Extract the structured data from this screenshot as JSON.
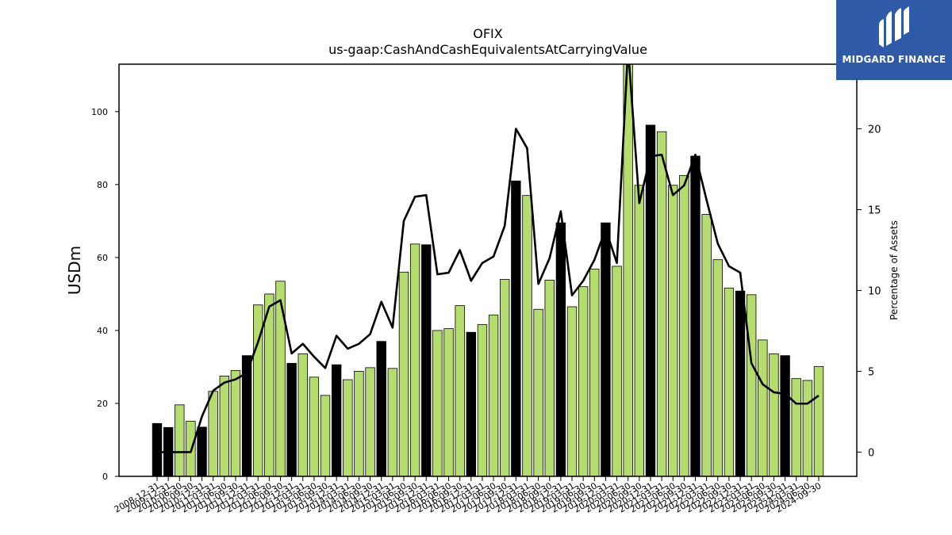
{
  "chart_data": {
    "type": "bar",
    "title": "OFIX",
    "subtitle": "us-gaap:CashAndCashEquivalentsAtCarryingValue",
    "ylabel": "USDm",
    "y2label": "Percentage of Assets",
    "ylim": [
      0,
      113
    ],
    "y2lim": [
      -1.5,
      24
    ],
    "yticks": [
      0,
      20,
      40,
      60,
      80,
      100
    ],
    "y2ticks": [
      0,
      5,
      10,
      15,
      20
    ],
    "colors": {
      "bar_default": "#b5dc6e",
      "bar_highlight": "#000000",
      "line": "#000000"
    },
    "categories": [
      "2008-12-31",
      "2009-12-31",
      "2010-06-30",
      "2010-09-30",
      "2010-12-31",
      "2011-03-31",
      "2011-06-30",
      "2011-09-30",
      "2011-12-31",
      "2012-03-31",
      "2012-06-30",
      "2012-09-30",
      "2012-12-31",
      "2013-03-31",
      "2013-06-30",
      "2013-09-30",
      "2013-12-31",
      "2014-03-31",
      "2014-06-30",
      "2014-09-30",
      "2014-12-31",
      "2015-03-31",
      "2015-06-30",
      "2015-09-30",
      "2015-12-31",
      "2016-03-31",
      "2016-06-30",
      "2016-09-30",
      "2016-12-31",
      "2017-03-31",
      "2017-06-30",
      "2017-09-30",
      "2017-12-31",
      "2018-03-31",
      "2018-06-30",
      "2018-09-30",
      "2018-12-31",
      "2019-03-31",
      "2019-06-30",
      "2019-09-30",
      "2019-12-31",
      "2020-03-31",
      "2020-06-30",
      "2020-09-30",
      "2020-12-31",
      "2021-03-31",
      "2021-06-30",
      "2021-09-30",
      "2021-12-31",
      "2022-03-31",
      "2022-06-30",
      "2022-09-30",
      "2022-12-31",
      "2023-03-31",
      "2023-06-30",
      "2023-09-30",
      "2023-12-31",
      "2024-03-31",
      "2024-06-30",
      "2024-09-30"
    ],
    "tick_labels": [
      "2008-12-31",
      "2009-12-31",
      "2010-06-30",
      "2010-09-30",
      "2010-12-31",
      "2011-03-31",
      "2011-06-30",
      "2011-09-30",
      "2011-12-31",
      "2012-03-31",
      "2012-06-30",
      "2012-09-30",
      "2012-12-31",
      "2013-03-31",
      "2013-06-30",
      "2013-09-30",
      "2013-12-31",
      "2014-03-31",
      "2014-06-30",
      "2014-09-30",
      "2014-12-31",
      "2015-03-31",
      "2015-06-30",
      "2015-09-30",
      "2015-12-31",
      "2016-03-31",
      "2016-06-30",
      "2016-09-30",
      "2016-12-31",
      "2017-03-31",
      "2017-06-30",
      "2017-09-30",
      "2017-12-31",
      "2018-03-31",
      "2018-06-30",
      "2018-09-30",
      "2018-12-31",
      "2019-03-31",
      "2019-06-30",
      "2019-09-30",
      "2019-12-31",
      "2020-03-31",
      "2020-06-30",
      "2020-09-30",
      "2020-12-31",
      "2021-03-31",
      "2021-06-30",
      "2021-09-30",
      "2021-12-31",
      "2022-03-31",
      "2022-06-30",
      "2022-09-30",
      "2022-12-31",
      "2023-03-31",
      "2023-06-30",
      "2023-09-30",
      "2023-12-31",
      "2024-03-31",
      "2024-06-30",
      "2024-09-30"
    ],
    "values": [
      14.5,
      13.4,
      19.6,
      15.1,
      13.5,
      23.3,
      27.5,
      29.0,
      33.1,
      47.0,
      50.0,
      53.5,
      31.0,
      33.6,
      27.2,
      22.2,
      30.6,
      26.5,
      28.8,
      29.8,
      37.0,
      29.6,
      56.0,
      63.7,
      63.5,
      40.0,
      40.5,
      46.8,
      39.5,
      41.6,
      44.2,
      54.0,
      81.0,
      77.0,
      45.8,
      53.8,
      69.5,
      46.5,
      52.0,
      56.8,
      69.5,
      57.6,
      113.0,
      79.8,
      96.3,
      94.5,
      79.8,
      82.5,
      87.8,
      71.8,
      59.4,
      51.6,
      50.8,
      49.8,
      37.4,
      33.6,
      33.1,
      26.8,
      26.3,
      30.1
    ],
    "highlight": [
      true,
      true,
      false,
      false,
      true,
      false,
      false,
      false,
      true,
      false,
      false,
      false,
      true,
      false,
      false,
      false,
      true,
      false,
      false,
      false,
      true,
      false,
      false,
      false,
      true,
      false,
      false,
      false,
      true,
      false,
      false,
      false,
      true,
      false,
      false,
      false,
      true,
      false,
      false,
      false,
      true,
      false,
      false,
      false,
      true,
      false,
      false,
      false,
      true,
      false,
      false,
      false,
      true,
      false,
      false,
      false,
      true,
      false,
      false,
      false
    ],
    "line_values": [
      0,
      0,
      0,
      0,
      2.2,
      3.8,
      4.3,
      4.5,
      4.9,
      6.8,
      9.0,
      9.4,
      6.1,
      6.7,
      5.9,
      5.2,
      7.2,
      6.4,
      6.7,
      7.3,
      9.3,
      7.7,
      14.3,
      15.8,
      15.9,
      11.0,
      11.1,
      12.5,
      10.6,
      11.7,
      12.1,
      14.0,
      20.0,
      18.8,
      10.4,
      12.0,
      14.9,
      9.7,
      10.6,
      11.9,
      13.8,
      11.7,
      25.0,
      15.4,
      18.3,
      18.4,
      15.9,
      16.5,
      18.4,
      15.6,
      12.9,
      11.5,
      11.1,
      5.5,
      4.2,
      3.7,
      3.6,
      3.0,
      3.0,
      3.5
    ]
  },
  "logo": {
    "text": "MIDGARD FINANCE"
  }
}
